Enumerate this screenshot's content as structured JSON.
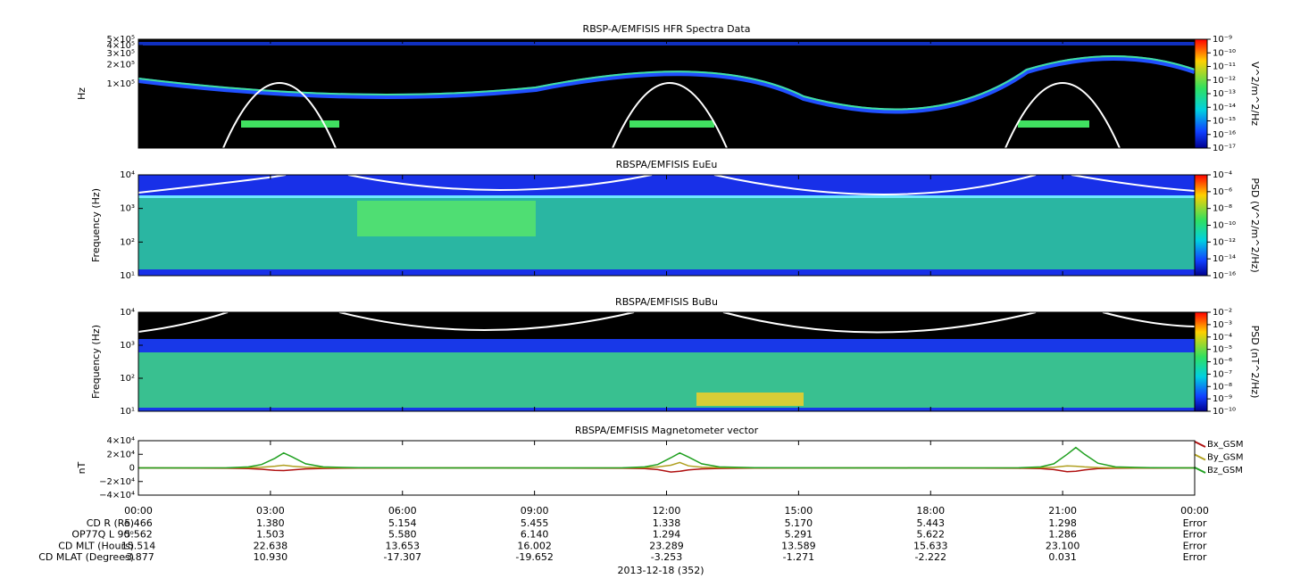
{
  "chart_data": [
    {
      "type": "spectrogram",
      "title": "RBSP-A/EMFISIS  HFR Spectra Data",
      "y_label": "Hz",
      "ylog": true,
      "ylim": [
        10000,
        500000
      ],
      "yticks": [
        {
          "value": 100000,
          "label": "1×10⁵"
        },
        {
          "value": 200000,
          "label": "2×10⁵"
        },
        {
          "value": 300000,
          "label": "3×10⁵"
        },
        {
          "value": 400000,
          "label": "4×10⁵"
        },
        {
          "value": 500000,
          "label": "5×10⁵"
        }
      ],
      "colorbar": {
        "label": "V^2/m^2/Hz",
        "log": true,
        "lim": [
          1e-17,
          1e-09
        ],
        "ticks": [
          {
            "value": 1e-09,
            "label": "10⁻⁹"
          },
          {
            "value": 1e-10,
            "label": "10⁻¹⁰"
          },
          {
            "value": 1e-11,
            "label": "10⁻¹¹"
          },
          {
            "value": 1e-12,
            "label": "10⁻¹²"
          },
          {
            "value": 1e-13,
            "label": "10⁻¹³"
          },
          {
            "value": 1e-14,
            "label": "10⁻¹⁴"
          },
          {
            "value": 1e-15,
            "label": "10⁻¹⁵"
          },
          {
            "value": 1e-16,
            "label": "10⁻¹⁶"
          },
          {
            "value": 1e-17,
            "label": "10⁻¹⁷"
          }
        ]
      }
    },
    {
      "type": "spectrogram",
      "title": "RBSPA/EMFISIS  EuEu",
      "y_label": "Frequency (Hz)",
      "ylog": true,
      "ylim": [
        10,
        10000
      ],
      "yticks": [
        {
          "value": 10,
          "label": "10¹"
        },
        {
          "value": 100,
          "label": "10²"
        },
        {
          "value": 1000,
          "label": "10³"
        },
        {
          "value": 10000,
          "label": "10⁴"
        }
      ],
      "colorbar": {
        "label": "PSD (V^2/m^2/Hz)",
        "log": true,
        "lim": [
          1e-16,
          0.0001
        ],
        "ticks": [
          {
            "value": 0.0001,
            "label": "10⁻⁴"
          },
          {
            "value": 1e-06,
            "label": "10⁻⁶"
          },
          {
            "value": 1e-08,
            "label": "10⁻⁸"
          },
          {
            "value": 1e-10,
            "label": "10⁻¹⁰"
          },
          {
            "value": 1e-12,
            "label": "10⁻¹²"
          },
          {
            "value": 1e-14,
            "label": "10⁻¹⁴"
          },
          {
            "value": 1e-16,
            "label": "10⁻¹⁶"
          }
        ]
      }
    },
    {
      "type": "spectrogram",
      "title": "RBSPA/EMFISIS  BuBu",
      "y_label": "Frequency (Hz)",
      "ylog": true,
      "ylim": [
        10,
        10000
      ],
      "yticks": [
        {
          "value": 10,
          "label": "10¹"
        },
        {
          "value": 100,
          "label": "10²"
        },
        {
          "value": 1000,
          "label": "10³"
        },
        {
          "value": 10000,
          "label": "10⁴"
        }
      ],
      "colorbar": {
        "label": "PSD (nT^2/Hz)",
        "log": true,
        "lim": [
          1e-10,
          0.01
        ],
        "ticks": [
          {
            "value": 0.01,
            "label": "10⁻²"
          },
          {
            "value": 0.001,
            "label": "10⁻³"
          },
          {
            "value": 0.0001,
            "label": "10⁻⁴"
          },
          {
            "value": 1e-05,
            "label": "10⁻⁵"
          },
          {
            "value": 1e-06,
            "label": "10⁻⁶"
          },
          {
            "value": 1e-07,
            "label": "10⁻⁷"
          },
          {
            "value": 1e-08,
            "label": "10⁻⁸"
          },
          {
            "value": 1e-09,
            "label": "10⁻⁹"
          },
          {
            "value": 1e-10,
            "label": "10⁻¹⁰"
          }
        ]
      }
    },
    {
      "type": "line",
      "title": "RBSPA/EMFISIS  Magnetometer vector",
      "y_label": "nT",
      "ylim": [
        -40000,
        40000
      ],
      "yticks": [
        {
          "value": 40000,
          "label": "4×10⁴"
        },
        {
          "value": 20000,
          "label": "2×10⁴"
        },
        0,
        {
          "value": -20000,
          "label": "−2×10⁴"
        },
        {
          "value": -40000,
          "label": "−4×10⁴"
        }
      ],
      "xlim": [
        0,
        24
      ],
      "xticks": [
        {
          "value": 0,
          "label": "00:00"
        },
        {
          "value": 3,
          "label": "03:00"
        },
        {
          "value": 6,
          "label": "06:00"
        },
        {
          "value": 9,
          "label": "09:00"
        },
        {
          "value": 12,
          "label": "12:00"
        },
        {
          "value": 15,
          "label": "15:00"
        },
        {
          "value": 18,
          "label": "18:00"
        },
        {
          "value": 21,
          "label": "21:00"
        },
        {
          "value": 24,
          "label": "00:00"
        }
      ],
      "x": [
        0,
        2,
        2.5,
        2.8,
        3.1,
        3.3,
        3.5,
        3.8,
        4.2,
        5,
        8,
        11,
        11.5,
        11.8,
        12.1,
        12.3,
        12.5,
        12.8,
        13.2,
        14,
        17,
        20,
        20.5,
        20.8,
        21.1,
        21.3,
        21.5,
        21.8,
        22.2,
        23,
        24
      ],
      "series": [
        {
          "name": "Bx_GSM",
          "color": "#b01010",
          "values": [
            0,
            -500,
            -1000,
            -2000,
            -3500,
            -4000,
            -3000,
            -1500,
            -800,
            -300,
            0,
            -500,
            -1000,
            -2500,
            -6000,
            -5000,
            -3000,
            -1500,
            -800,
            -300,
            0,
            -500,
            -1000,
            -2500,
            -5500,
            -5000,
            -3000,
            -1000,
            -500,
            -200,
            0
          ]
        },
        {
          "name": "By_GSM",
          "color": "#b0a020",
          "values": [
            0,
            0,
            300,
            1000,
            2500,
            4000,
            2500,
            1000,
            200,
            0,
            0,
            0,
            300,
            1500,
            4000,
            8000,
            3000,
            1000,
            200,
            0,
            0,
            0,
            300,
            1000,
            3000,
            2500,
            1500,
            500,
            100,
            0,
            0
          ]
        },
        {
          "name": "Bz_GSM",
          "color": "#20a020",
          "values": [
            0,
            100,
            1500,
            5000,
            14000,
            22000,
            16000,
            6000,
            1500,
            200,
            0,
            100,
            1500,
            5000,
            15000,
            22000,
            16000,
            6000,
            1500,
            200,
            0,
            100,
            1500,
            6000,
            20000,
            30000,
            20000,
            7000,
            1500,
            200,
            0
          ]
        }
      ]
    }
  ],
  "ephemeris": {
    "row_labels": [
      "CD R (Re)",
      "OP77Q L 90ᵒ",
      "CD MLT (Hours)",
      "CD MLAT (Degrees)"
    ],
    "rows": [
      [
        "5.466",
        "1.380",
        "5.154",
        "5.455",
        "1.338",
        "5.170",
        "5.443",
        "1.298",
        "Error"
      ],
      [
        "5.562",
        "1.503",
        "5.580",
        "6.140",
        "1.294",
        "5.291",
        "5.622",
        "1.286",
        "Error"
      ],
      [
        "15.514",
        "22.638",
        "13.653",
        "16.002",
        "23.289",
        "13.589",
        "15.633",
        "23.100",
        "Error"
      ],
      [
        "-3.877",
        "10.930",
        "-17.307",
        "-19.652",
        "-3.253",
        "-1.271",
        "-2.222",
        "0.031",
        "Error"
      ]
    ]
  },
  "date_label": "2013-12-18 (352)"
}
